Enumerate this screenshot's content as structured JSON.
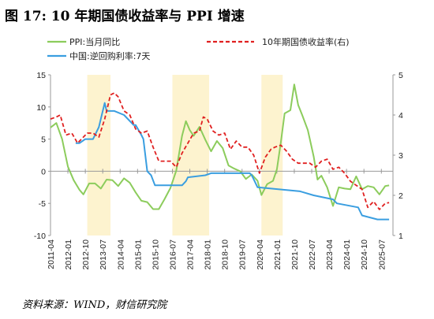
{
  "figure_title": "图 17: 10 年期国债收益率与 PPI 增速",
  "source_note": "资料来源：WIND，财信研究院",
  "colors": {
    "ppi": "#8ccc5c",
    "yield": "#e02020",
    "rrr": "#3a9ee0",
    "shade": "#fdf3cf",
    "axis": "#999999"
  },
  "chart_data": {
    "type": "line",
    "title": "",
    "xlabel": "",
    "ylabel_left": "",
    "ylabel_right": "",
    "ylim_left": [
      -10,
      15
    ],
    "yticks_left": [
      "15",
      "10",
      "5",
      "0",
      "-5",
      "-10"
    ],
    "ylim_right": [
      1,
      5
    ],
    "yticks_right": [
      "5",
      "4",
      "3",
      "2",
      "1"
    ],
    "xlim": [
      "2011-04",
      "2026-01"
    ],
    "xticks": [
      "2011-04",
      "2012-01",
      "2012-10",
      "2013-07",
      "2014-04",
      "2015-01",
      "2015-10",
      "2016-07",
      "2017-04",
      "2018-01",
      "2018-10",
      "2019-07",
      "2020-04",
      "2021-01",
      "2021-10",
      "2022-07",
      "2023-04",
      "2024-01",
      "2024-10",
      "2025-07"
    ],
    "grid": false,
    "legend_position": "top",
    "shaded_periods": [
      [
        "2012-11",
        "2013-11"
      ],
      [
        "2016-07",
        "2018-02"
      ],
      [
        "2020-05",
        "2021-04"
      ]
    ],
    "series": [
      {
        "name": "PPI:当月同比",
        "axis": "left",
        "style": "solid",
        "points": [
          [
            "2011-04",
            6.8
          ],
          [
            "2011-07",
            7.5
          ],
          [
            "2011-10",
            5.0
          ],
          [
            "2012-01",
            0.7
          ],
          [
            "2012-04",
            -1.4
          ],
          [
            "2012-07",
            -2.9
          ],
          [
            "2012-09",
            -3.6
          ],
          [
            "2012-12",
            -1.9
          ],
          [
            "2013-03",
            -1.9
          ],
          [
            "2013-06",
            -2.7
          ],
          [
            "2013-09",
            -1.3
          ],
          [
            "2013-12",
            -1.4
          ],
          [
            "2014-03",
            -2.3
          ],
          [
            "2014-06",
            -1.1
          ],
          [
            "2014-09",
            -1.8
          ],
          [
            "2014-12",
            -3.3
          ],
          [
            "2015-03",
            -4.6
          ],
          [
            "2015-06",
            -4.8
          ],
          [
            "2015-09",
            -5.9
          ],
          [
            "2015-12",
            -5.9
          ],
          [
            "2016-03",
            -4.3
          ],
          [
            "2016-06",
            -2.6
          ],
          [
            "2016-09",
            0.1
          ],
          [
            "2016-12",
            5.5
          ],
          [
            "2017-02",
            7.8
          ],
          [
            "2017-04",
            6.4
          ],
          [
            "2017-06",
            5.5
          ],
          [
            "2017-09",
            6.9
          ],
          [
            "2017-12",
            4.9
          ],
          [
            "2018-03",
            3.1
          ],
          [
            "2018-06",
            4.7
          ],
          [
            "2018-09",
            3.6
          ],
          [
            "2018-12",
            0.9
          ],
          [
            "2019-03",
            0.4
          ],
          [
            "2019-06",
            0.0
          ],
          [
            "2019-09",
            -1.2
          ],
          [
            "2019-12",
            -0.5
          ],
          [
            "2020-03",
            -1.5
          ],
          [
            "2020-05",
            -3.7
          ],
          [
            "2020-08",
            -2.0
          ],
          [
            "2020-11",
            -1.5
          ],
          [
            "2021-01",
            0.3
          ],
          [
            "2021-03",
            4.4
          ],
          [
            "2021-05",
            9.0
          ],
          [
            "2021-08",
            9.5
          ],
          [
            "2021-10",
            13.5
          ],
          [
            "2021-12",
            10.3
          ],
          [
            "2022-02",
            8.8
          ],
          [
            "2022-05",
            6.4
          ],
          [
            "2022-08",
            2.3
          ],
          [
            "2022-10",
            -1.3
          ],
          [
            "2022-12",
            -0.7
          ],
          [
            "2023-03",
            -2.5
          ],
          [
            "2023-06",
            -5.4
          ],
          [
            "2023-09",
            -2.5
          ],
          [
            "2023-12",
            -2.7
          ],
          [
            "2024-03",
            -2.8
          ],
          [
            "2024-06",
            -0.8
          ],
          [
            "2024-09",
            -2.8
          ],
          [
            "2024-12",
            -2.3
          ],
          [
            "2025-03",
            -2.5
          ],
          [
            "2025-06",
            -3.6
          ],
          [
            "2025-09",
            -2.3
          ],
          [
            "2025-11",
            -2.2
          ]
        ]
      },
      {
        "name": "10年期国债收益率(右)",
        "axis": "right",
        "style": "dashed",
        "points": [
          [
            "2011-04",
            3.9
          ],
          [
            "2011-07",
            3.95
          ],
          [
            "2011-09",
            4.0
          ],
          [
            "2011-12",
            3.5
          ],
          [
            "2012-03",
            3.55
          ],
          [
            "2012-06",
            3.3
          ],
          [
            "2012-08",
            3.4
          ],
          [
            "2012-11",
            3.55
          ],
          [
            "2013-02",
            3.55
          ],
          [
            "2013-05",
            3.45
          ],
          [
            "2013-08",
            3.9
          ],
          [
            "2013-11",
            4.5
          ],
          [
            "2014-01",
            4.55
          ],
          [
            "2014-03",
            4.45
          ],
          [
            "2014-06",
            4.1
          ],
          [
            "2014-09",
            4.0
          ],
          [
            "2014-12",
            3.65
          ],
          [
            "2015-03",
            3.55
          ],
          [
            "2015-06",
            3.6
          ],
          [
            "2015-09",
            3.2
          ],
          [
            "2015-12",
            2.85
          ],
          [
            "2016-03",
            2.85
          ],
          [
            "2016-06",
            2.85
          ],
          [
            "2016-09",
            2.7
          ],
          [
            "2016-12",
            3.05
          ],
          [
            "2017-03",
            3.3
          ],
          [
            "2017-06",
            3.55
          ],
          [
            "2017-09",
            3.6
          ],
          [
            "2017-11",
            3.95
          ],
          [
            "2018-01",
            3.9
          ],
          [
            "2018-04",
            3.6
          ],
          [
            "2018-07",
            3.5
          ],
          [
            "2018-10",
            3.55
          ],
          [
            "2019-01",
            3.15
          ],
          [
            "2019-04",
            3.35
          ],
          [
            "2019-07",
            3.2
          ],
          [
            "2019-10",
            3.2
          ],
          [
            "2020-01",
            3.0
          ],
          [
            "2020-04",
            2.55
          ],
          [
            "2020-07",
            2.95
          ],
          [
            "2020-10",
            3.15
          ],
          [
            "2020-12",
            3.2
          ],
          [
            "2021-03",
            3.25
          ],
          [
            "2021-06",
            3.1
          ],
          [
            "2021-09",
            2.9
          ],
          [
            "2021-12",
            2.8
          ],
          [
            "2022-03",
            2.8
          ],
          [
            "2022-06",
            2.8
          ],
          [
            "2022-09",
            2.7
          ],
          [
            "2022-12",
            2.85
          ],
          [
            "2023-03",
            2.9
          ],
          [
            "2023-06",
            2.65
          ],
          [
            "2023-09",
            2.7
          ],
          [
            "2023-12",
            2.55
          ],
          [
            "2024-03",
            2.35
          ],
          [
            "2024-06",
            2.25
          ],
          [
            "2024-09",
            2.15
          ],
          [
            "2024-12",
            1.7
          ],
          [
            "2025-03",
            1.85
          ],
          [
            "2025-06",
            1.65
          ],
          [
            "2025-09",
            1.8
          ],
          [
            "2025-11",
            1.82
          ]
        ]
      },
      {
        "name": "中国:逆回购利率:7天",
        "axis": "right",
        "style": "solid",
        "points": [
          [
            "2012-05",
            3.3
          ],
          [
            "2012-07",
            3.3
          ],
          [
            "2012-10",
            3.4
          ],
          [
            "2013-02",
            3.4
          ],
          [
            "2013-05",
            3.7
          ],
          [
            "2013-08",
            4.3
          ],
          [
            "2013-09",
            4.1
          ],
          [
            "2013-10",
            4.1
          ],
          [
            "2014-01",
            4.1
          ],
          [
            "2014-06",
            4.0
          ],
          [
            "2014-11",
            3.75
          ],
          [
            "2014-12",
            3.75
          ],
          [
            "2015-03",
            3.5
          ],
          [
            "2015-04",
            3.4
          ],
          [
            "2015-06",
            2.6
          ],
          [
            "2015-08",
            2.5
          ],
          [
            "2015-10",
            2.25
          ],
          [
            "2016-12",
            2.25
          ],
          [
            "2017-02",
            2.35
          ],
          [
            "2017-03",
            2.45
          ],
          [
            "2017-12",
            2.5
          ],
          [
            "2018-03",
            2.55
          ],
          [
            "2019-11",
            2.55
          ],
          [
            "2019-12",
            2.5
          ],
          [
            "2020-01",
            2.4
          ],
          [
            "2020-03",
            2.2
          ],
          [
            "2022-01",
            2.1
          ],
          [
            "2022-08",
            2.0
          ],
          [
            "2023-06",
            1.9
          ],
          [
            "2023-08",
            1.8
          ],
          [
            "2024-07",
            1.7
          ],
          [
            "2024-09",
            1.5
          ],
          [
            "2025-05",
            1.4
          ],
          [
            "2025-11",
            1.4
          ]
        ]
      }
    ]
  }
}
